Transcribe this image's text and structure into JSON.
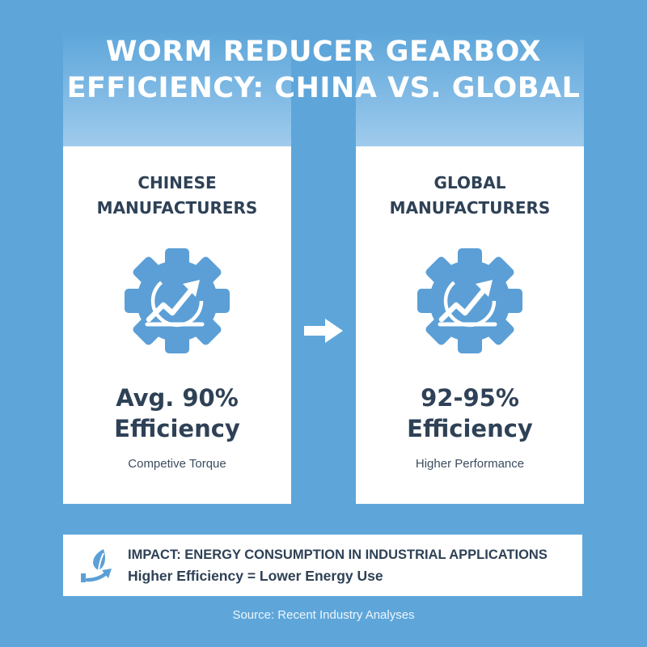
{
  "title_line1": "WORM REDUCER GEARBOX",
  "title_line2": "EFFICIENCY: CHINA VS. GLOBAL",
  "colors": {
    "background": "#5ea6da",
    "accent": "#5b9fd6",
    "text_dark": "#2e4156",
    "card": "#ffffff"
  },
  "cards": [
    {
      "heading_line1": "CHINESE",
      "heading_line2": "MANUFACTURERS",
      "icon": "gear-growth-chart-icon",
      "value_line1": "Avg. 90%",
      "value_line2": "Efficiency",
      "caption": "Competive Torque"
    },
    {
      "heading_line1": "GLOBAL",
      "heading_line2": "MANUFACTURERS",
      "icon": "gear-growth-chart-icon",
      "value_line1": "92-95%",
      "value_line2": "Efficiency",
      "caption": "Higher Performance"
    }
  ],
  "comparison_arrow_icon": "right-arrow-icon",
  "impact": {
    "icon": "leaf-energy-icon",
    "line1": "IMPACT: ENERGY CONSUMPTION IN INDUSTRIAL APPLICATIONS",
    "line2": "Higher Efficiency = Lower Energy Use"
  },
  "source": "Source: Recent Industry Analyses"
}
